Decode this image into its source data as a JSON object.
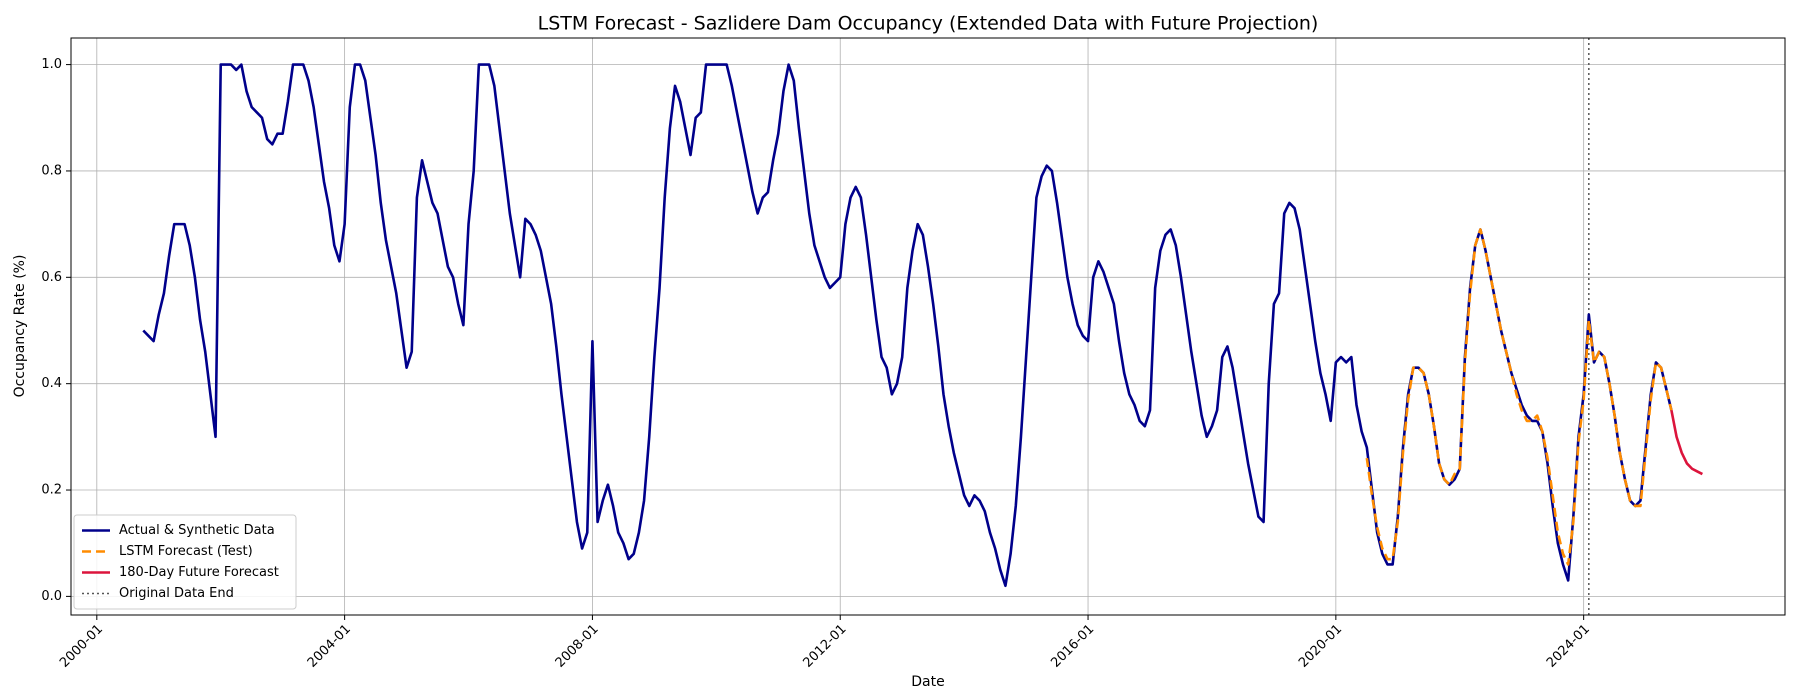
{
  "chart_data": {
    "type": "line",
    "title": "LSTM Forecast - Sazlidere Dam Occupancy (Extended Data with Future Projection)",
    "x_label": "Date",
    "y_label": "Occupancy Rate (%)",
    "xlim": [
      "1999-08",
      "2027-04"
    ],
    "xticks": [
      "2000-01",
      "2004-01",
      "2008-01",
      "2012-01",
      "2016-01",
      "2020-01",
      "2024-01"
    ],
    "ylim": [
      -0.035,
      1.05
    ],
    "yticks": [
      {
        "value": 0,
        "label": "0.0"
      },
      0.2,
      0.4,
      0.6,
      0.8,
      {
        "value": 1,
        "label": "1.0"
      }
    ],
    "grid": true,
    "legend": "lower left",
    "series": [
      {
        "name": "Actual & Synthetic Data",
        "color": "#00008b",
        "dash": "solid",
        "x": [
          "2000-10",
          "2000-11",
          "2000-12",
          "2001-01",
          "2001-02",
          "2001-03",
          "2001-04",
          "2001-05",
          "2001-06",
          "2001-07",
          "2001-08",
          "2001-09",
          "2001-10",
          "2001-11",
          "2001-12",
          "2002-01",
          "2002-02",
          "2002-03",
          "2002-04",
          "2002-05",
          "2002-06",
          "2002-07",
          "2002-08",
          "2002-09",
          "2002-10",
          "2002-11",
          "2002-12",
          "2003-01",
          "2003-02",
          "2003-03",
          "2003-04",
          "2003-05",
          "2003-06",
          "2003-07",
          "2003-08",
          "2003-09",
          "2003-10",
          "2003-11",
          "2003-12",
          "2004-01",
          "2004-02",
          "2004-03",
          "2004-04",
          "2004-05",
          "2004-06",
          "2004-07",
          "2004-08",
          "2004-09",
          "2004-10",
          "2004-11",
          "2004-12",
          "2005-01",
          "2005-02",
          "2005-03",
          "2005-04",
          "2005-05",
          "2005-06",
          "2005-07",
          "2005-08",
          "2005-09",
          "2005-10",
          "2005-11",
          "2005-12",
          "2006-01",
          "2006-02",
          "2006-03",
          "2006-04",
          "2006-05",
          "2006-06",
          "2006-07",
          "2006-08",
          "2006-09",
          "2006-10",
          "2006-11",
          "2006-12",
          "2007-01",
          "2007-02",
          "2007-03",
          "2007-04",
          "2007-05",
          "2007-06",
          "2007-07",
          "2007-08",
          "2007-09",
          "2007-10",
          "2007-11",
          "2007-12",
          "2008-01",
          "2008-02",
          "2008-03",
          "2008-04",
          "2008-05",
          "2008-06",
          "2008-07",
          "2008-08",
          "2008-09",
          "2008-10",
          "2008-11",
          "2008-12",
          "2009-01",
          "2009-02",
          "2009-03",
          "2009-04",
          "2009-05",
          "2009-06",
          "2009-07",
          "2009-08",
          "2009-09",
          "2009-10",
          "2009-11",
          "2009-12",
          "2010-01",
          "2010-02",
          "2010-03",
          "2010-04",
          "2010-05",
          "2010-06",
          "2010-07",
          "2010-08",
          "2010-09",
          "2010-10",
          "2010-11",
          "2010-12",
          "2011-01",
          "2011-02",
          "2011-03",
          "2011-04",
          "2011-05",
          "2011-06",
          "2011-07",
          "2011-08",
          "2011-09",
          "2011-10",
          "2011-11",
          "2011-12",
          "2012-01",
          "2012-02",
          "2012-03",
          "2012-04",
          "2012-05",
          "2012-06",
          "2012-07",
          "2012-08",
          "2012-09",
          "2012-10",
          "2012-11",
          "2012-12",
          "2013-01",
          "2013-02",
          "2013-03",
          "2013-04",
          "2013-05",
          "2013-06",
          "2013-07",
          "2013-08",
          "2013-09",
          "2013-10",
          "2013-11",
          "2013-12",
          "2014-01",
          "2014-02",
          "2014-03",
          "2014-04",
          "2014-05",
          "2014-06",
          "2014-07",
          "2014-08",
          "2014-09",
          "2014-10",
          "2014-11",
          "2014-12",
          "2015-01",
          "2015-02",
          "2015-03",
          "2015-04",
          "2015-05",
          "2015-06",
          "2015-07",
          "2015-08",
          "2015-09",
          "2015-10",
          "2015-11",
          "2015-12",
          "2016-01",
          "2016-02",
          "2016-03",
          "2016-04",
          "2016-05",
          "2016-06",
          "2016-07",
          "2016-08",
          "2016-09",
          "2016-10",
          "2016-11",
          "2016-12",
          "2017-01",
          "2017-02",
          "2017-03",
          "2017-04",
          "2017-05",
          "2017-06",
          "2017-07",
          "2017-08",
          "2017-09",
          "2017-10",
          "2017-11",
          "2017-12",
          "2018-01",
          "2018-02",
          "2018-03",
          "2018-04",
          "2018-05",
          "2018-06",
          "2018-07",
          "2018-08",
          "2018-09",
          "2018-10",
          "2018-11",
          "2018-12",
          "2019-01",
          "2019-02",
          "2019-03",
          "2019-04",
          "2019-05",
          "2019-06",
          "2019-07",
          "2019-08",
          "2019-09",
          "2019-10",
          "2019-11",
          "2019-12",
          "2020-01",
          "2020-02",
          "2020-03",
          "2020-04",
          "2020-05",
          "2020-06",
          "2020-07",
          "2020-08",
          "2020-09",
          "2020-10",
          "2020-11",
          "2020-12",
          "2021-01",
          "2021-02",
          "2021-03",
          "2021-04",
          "2021-05",
          "2021-06",
          "2021-07",
          "2021-08",
          "2021-09",
          "2021-10",
          "2021-11",
          "2021-12",
          "2022-01",
          "2022-02",
          "2022-03",
          "2022-04",
          "2022-05",
          "2022-06",
          "2022-07",
          "2022-08",
          "2022-09",
          "2022-10",
          "2022-11",
          "2022-12",
          "2023-01",
          "2023-02",
          "2023-03",
          "2023-04",
          "2023-05",
          "2023-06",
          "2023-07",
          "2023-08",
          "2023-09",
          "2023-10",
          "2023-11",
          "2023-12",
          "2024-01",
          "2024-02",
          "2024-03",
          "2024-04",
          "2024-05",
          "2024-06",
          "2024-07",
          "2024-08",
          "2024-09",
          "2024-10",
          "2024-11",
          "2024-12",
          "2025-01",
          "2025-02",
          "2025-03",
          "2025-04",
          "2025-05",
          "2025-06"
        ],
        "values": [
          0.5,
          0.49,
          0.48,
          0.53,
          0.57,
          0.64,
          0.7,
          0.7,
          0.7,
          0.66,
          0.6,
          0.52,
          0.46,
          0.38,
          0.3,
          1.0,
          1.0,
          1.0,
          0.99,
          1.0,
          0.95,
          0.92,
          0.91,
          0.9,
          0.86,
          0.85,
          0.87,
          0.87,
          0.93,
          1.0,
          1.0,
          1.0,
          0.97,
          0.92,
          0.85,
          0.78,
          0.73,
          0.66,
          0.63,
          0.7,
          0.92,
          1.0,
          1.0,
          0.97,
          0.9,
          0.83,
          0.74,
          0.67,
          0.62,
          0.57,
          0.5,
          0.43,
          0.46,
          0.75,
          0.82,
          0.78,
          0.74,
          0.72,
          0.67,
          0.62,
          0.6,
          0.55,
          0.51,
          0.7,
          0.8,
          1.0,
          1.0,
          1.0,
          0.96,
          0.88,
          0.8,
          0.72,
          0.66,
          0.6,
          0.71,
          0.7,
          0.68,
          0.65,
          0.6,
          0.55,
          0.47,
          0.38,
          0.3,
          0.22,
          0.14,
          0.09,
          0.12,
          0.48,
          0.14,
          0.18,
          0.21,
          0.17,
          0.12,
          0.1,
          0.07,
          0.08,
          0.12,
          0.18,
          0.3,
          0.45,
          0.58,
          0.75,
          0.88,
          0.96,
          0.93,
          0.88,
          0.83,
          0.9,
          0.91,
          1.0,
          1.0,
          1.0,
          1.0,
          1.0,
          0.96,
          0.91,
          0.86,
          0.81,
          0.76,
          0.72,
          0.75,
          0.76,
          0.82,
          0.87,
          0.95,
          1.0,
          0.97,
          0.88,
          0.8,
          0.72,
          0.66,
          0.63,
          0.6,
          0.58,
          0.59,
          0.6,
          0.7,
          0.75,
          0.77,
          0.75,
          0.68,
          0.6,
          0.52,
          0.45,
          0.43,
          0.38,
          0.4,
          0.45,
          0.58,
          0.65,
          0.7,
          0.68,
          0.62,
          0.55,
          0.47,
          0.38,
          0.32,
          0.27,
          0.23,
          0.19,
          0.17,
          0.19,
          0.18,
          0.16,
          0.12,
          0.09,
          0.05,
          0.02,
          0.08,
          0.17,
          0.3,
          0.45,
          0.6,
          0.75,
          0.79,
          0.81,
          0.8,
          0.74,
          0.67,
          0.6,
          0.55,
          0.51,
          0.49,
          0.48,
          0.6,
          0.63,
          0.61,
          0.58,
          0.55,
          0.48,
          0.42,
          0.38,
          0.36,
          0.33,
          0.32,
          0.35,
          0.58,
          0.65,
          0.68,
          0.69,
          0.66,
          0.6,
          0.53,
          0.46,
          0.4,
          0.34,
          0.3,
          0.32,
          0.35,
          0.45,
          0.47,
          0.43,
          0.37,
          0.31,
          0.25,
          0.2,
          0.15,
          0.14,
          0.4,
          0.55,
          0.57,
          0.72,
          0.74,
          0.73,
          0.69,
          0.62,
          0.55,
          0.48,
          0.42,
          0.38,
          0.33,
          0.44,
          0.45,
          0.44,
          0.45,
          0.36,
          0.31,
          0.28,
          0.2,
          0.12,
          0.08,
          0.06,
          0.06,
          0.15,
          0.28,
          0.38,
          0.43,
          0.43,
          0.42,
          0.38,
          0.32,
          0.25,
          0.22,
          0.21,
          0.22,
          0.24,
          0.45,
          0.58,
          0.66,
          0.69,
          0.65,
          0.6,
          0.55,
          0.5,
          0.46,
          0.42,
          0.39,
          0.36,
          0.34,
          0.33,
          0.33,
          0.31,
          0.25,
          0.17,
          0.1,
          0.06,
          0.03,
          0.15,
          0.3,
          0.38,
          0.53,
          0.44,
          0.46,
          0.45,
          0.4,
          0.34,
          0.27,
          0.22,
          0.18,
          0.17,
          0.18,
          0.28,
          0.38,
          0.44,
          0.43,
          0.39,
          0.35
        ]
      },
      {
        "name": "LSTM Forecast (Test)",
        "color": "#ff8c00",
        "dash": "dashed",
        "x": [
          "2020-07",
          "2020-08",
          "2020-09",
          "2020-10",
          "2020-11",
          "2020-12",
          "2021-01",
          "2021-02",
          "2021-03",
          "2021-04",
          "2021-05",
          "2021-06",
          "2021-07",
          "2021-08",
          "2021-09",
          "2021-10",
          "2021-11",
          "2021-12",
          "2022-01",
          "2022-02",
          "2022-03",
          "2022-04",
          "2022-05",
          "2022-06",
          "2022-07",
          "2022-08",
          "2022-09",
          "2022-10",
          "2022-11",
          "2022-12",
          "2023-01",
          "2023-02",
          "2023-03",
          "2023-04",
          "2023-05",
          "2023-06",
          "2023-07",
          "2023-08",
          "2023-09",
          "2023-10",
          "2023-11",
          "2023-12",
          "2024-01",
          "2024-02",
          "2024-03",
          "2024-04",
          "2024-05",
          "2024-06",
          "2024-07",
          "2024-08",
          "2024-09",
          "2024-10",
          "2024-11",
          "2024-12",
          "2025-01",
          "2025-02",
          "2025-03",
          "2025-04",
          "2025-05",
          "2025-06"
        ],
        "values": [
          0.26,
          0.19,
          0.13,
          0.09,
          0.07,
          0.07,
          0.14,
          0.27,
          0.37,
          0.43,
          0.43,
          0.42,
          0.38,
          0.32,
          0.25,
          0.22,
          0.21,
          0.23,
          0.24,
          0.44,
          0.57,
          0.66,
          0.69,
          0.65,
          0.6,
          0.55,
          0.5,
          0.46,
          0.42,
          0.38,
          0.35,
          0.33,
          0.33,
          0.34,
          0.31,
          0.26,
          0.19,
          0.12,
          0.08,
          0.06,
          0.14,
          0.29,
          0.37,
          0.52,
          0.44,
          0.46,
          0.45,
          0.4,
          0.34,
          0.27,
          0.22,
          0.18,
          0.17,
          0.17,
          0.27,
          0.37,
          0.44,
          0.43,
          0.39,
          0.35
        ]
      },
      {
        "name": "180-Day Future Forecast",
        "color": "#dc143c",
        "dash": "solid",
        "x": [
          "2025-06",
          "2025-07",
          "2025-08",
          "2025-09",
          "2025-10",
          "2025-11",
          "2025-12"
        ],
        "values": [
          0.35,
          0.3,
          0.27,
          0.25,
          0.24,
          0.235,
          0.23
        ]
      }
    ],
    "reference_lines": [
      {
        "name": "Original Data End",
        "x": "2024-02",
        "color": "#555555",
        "dash": "dotted"
      }
    ]
  }
}
